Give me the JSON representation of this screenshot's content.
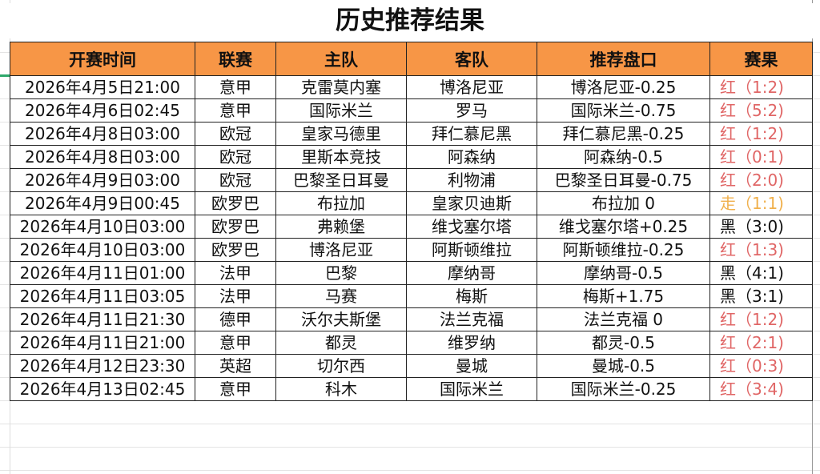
{
  "title": "历史推荐结果",
  "headers": [
    "开赛时间",
    "联赛",
    "主队",
    "客队",
    "推荐盘口",
    "赛果"
  ],
  "colors": {
    "header_bg": "#f79646",
    "win": "#e06666",
    "push": "#f0b04c",
    "loss": "#111111"
  },
  "rows": [
    {
      "time": "2026年4月5日21:00",
      "league": "意甲",
      "home": "克雷莫内塞",
      "away": "博洛尼亚",
      "pick": "博洛尼亚-0.25",
      "result": "红（1:2)",
      "status": "win"
    },
    {
      "time": "2026年4月6日02:45",
      "league": "意甲",
      "home": "国际米兰",
      "away": "罗马",
      "pick": "国际米兰-0.75",
      "result": "红（5:2)",
      "status": "win"
    },
    {
      "time": "2026年4月8日03:00",
      "league": "欧冠",
      "home": "皇家马德里",
      "away": "拜仁慕尼黑",
      "pick": "拜仁慕尼黑-0.25",
      "result": "红（1:2)",
      "status": "win"
    },
    {
      "time": "2026年4月8日03:00",
      "league": "欧冠",
      "home": "里斯本竞技",
      "away": "阿森纳",
      "pick": "阿森纳-0.5",
      "result": "红（0:1)",
      "status": "win"
    },
    {
      "time": "2026年4月9日03:00",
      "league": "欧冠",
      "home": "巴黎圣日耳曼",
      "away": "利物浦",
      "pick": "巴黎圣日耳曼-0.75",
      "result": "红（2:0)",
      "status": "win"
    },
    {
      "time": "2026年4月9日00:45",
      "league": "欧罗巴",
      "home": "布拉加",
      "away": "皇家贝迪斯",
      "pick": "布拉加 0",
      "result": "走（1:1)",
      "status": "push"
    },
    {
      "time": "2026年4月10日03:00",
      "league": "欧罗巴",
      "home": "弗赖堡",
      "away": "维戈塞尔塔",
      "pick": "维戈塞尔塔+0.25",
      "result": "黑（3:0)",
      "status": "loss"
    },
    {
      "time": "2026年4月10日03:00",
      "league": "欧罗巴",
      "home": "博洛尼亚",
      "away": "阿斯顿维拉",
      "pick": "阿斯顿维拉-0.25",
      "result": "红（1:3)",
      "status": "win"
    },
    {
      "time": "2026年4月11日01:00",
      "league": "法甲",
      "home": "巴黎",
      "away": "摩纳哥",
      "pick": "摩纳哥-0.5",
      "result": "黑（4:1)",
      "status": "loss"
    },
    {
      "time": "2026年4月11日03:05",
      "league": "法甲",
      "home": "马赛",
      "away": "梅斯",
      "pick": "梅斯+1.75",
      "result": "黑（3:1)",
      "status": "loss"
    },
    {
      "time": "2026年4月11日21:30",
      "league": "德甲",
      "home": "沃尔夫斯堡",
      "away": "法兰克福",
      "pick": "法兰克福 0",
      "result": "红（1:2)",
      "status": "win"
    },
    {
      "time": "2026年4月11日21:00",
      "league": "意甲",
      "home": "都灵",
      "away": "维罗纳",
      "pick": "都灵-0.5",
      "result": "红（2:1)",
      "status": "win"
    },
    {
      "time": "2026年4月12日23:30",
      "league": "英超",
      "home": "切尔西",
      "away": "曼城",
      "pick": "曼城-0.5",
      "result": "红（0:3)",
      "status": "win"
    },
    {
      "time": "2026年4月13日02:45",
      "league": "意甲",
      "home": "科木",
      "away": "国际米兰",
      "pick": "国际米兰-0.25",
      "result": "红（3:4)",
      "status": "win"
    }
  ]
}
